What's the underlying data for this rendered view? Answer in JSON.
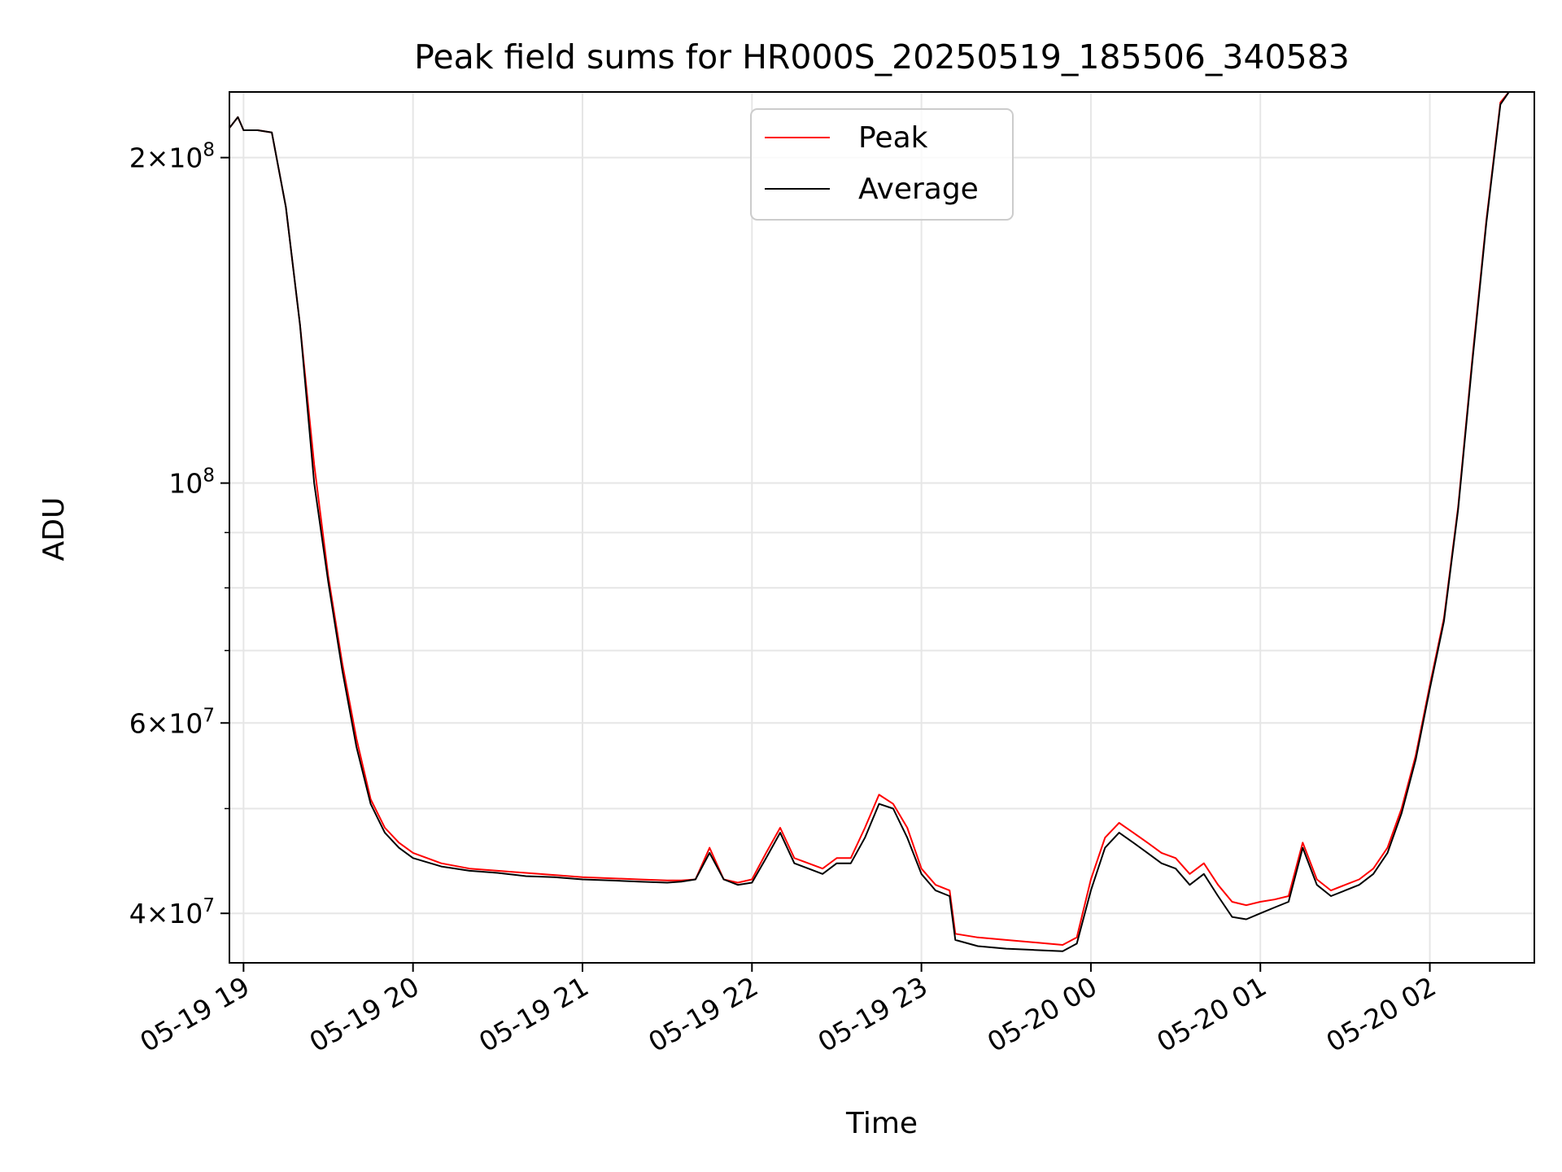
{
  "chart_data": {
    "type": "line",
    "title": "Peak field sums for HR000S_20250519_185506_340583",
    "xlabel": "Time",
    "ylabel": "ADU",
    "y_scale": "log",
    "ylim": [
      36000000,
      230000000
    ],
    "xlim": [
      "2025-05-19 18:55",
      "2025-05-20 02:37"
    ],
    "grid": true,
    "legend": {
      "placement": "upper center",
      "entries": [
        "Peak",
        "Average"
      ]
    },
    "x_ticks": [
      {
        "value": "2025-05-19 19:00",
        "label": "05-19 19"
      },
      {
        "value": "2025-05-19 20:00",
        "label": "05-19 20"
      },
      {
        "value": "2025-05-19 21:00",
        "label": "05-19 21"
      },
      {
        "value": "2025-05-19 22:00",
        "label": "05-19 22"
      },
      {
        "value": "2025-05-19 23:00",
        "label": "05-19 23"
      },
      {
        "value": "2025-05-20 00:00",
        "label": "05-20 00"
      },
      {
        "value": "2025-05-20 01:00",
        "label": "05-20 01"
      },
      {
        "value": "2025-05-20 02:00",
        "label": "05-20 02"
      }
    ],
    "y_ticks": [
      {
        "value": 40000000,
        "base": "4",
        "exp": "7"
      },
      {
        "value": 60000000,
        "base": "6",
        "exp": "7"
      },
      {
        "value": 100000000,
        "base": "",
        "exp": "8"
      },
      {
        "value": 200000000,
        "base": "2",
        "exp": "8"
      }
    ],
    "y_minor_ticks": [
      50000000,
      70000000,
      80000000,
      90000000
    ],
    "series": [
      {
        "name": "Peak",
        "color": "#ff0000",
        "x": [
          "2025-05-19 18:55",
          "2025-05-19 18:58",
          "2025-05-19 19:00",
          "2025-05-19 19:05",
          "2025-05-19 19:10",
          "2025-05-19 19:15",
          "2025-05-19 19:20",
          "2025-05-19 19:25",
          "2025-05-19 19:30",
          "2025-05-19 19:35",
          "2025-05-19 19:40",
          "2025-05-19 19:45",
          "2025-05-19 19:50",
          "2025-05-19 19:55",
          "2025-05-19 20:00",
          "2025-05-19 20:10",
          "2025-05-19 20:20",
          "2025-05-19 20:30",
          "2025-05-19 20:40",
          "2025-05-19 20:50",
          "2025-05-19 21:00",
          "2025-05-19 21:10",
          "2025-05-19 21:20",
          "2025-05-19 21:30",
          "2025-05-19 21:35",
          "2025-05-19 21:40",
          "2025-05-19 21:45",
          "2025-05-19 21:50",
          "2025-05-19 21:55",
          "2025-05-19 22:00",
          "2025-05-19 22:05",
          "2025-05-19 22:10",
          "2025-05-19 22:15",
          "2025-05-19 22:20",
          "2025-05-19 22:25",
          "2025-05-19 22:30",
          "2025-05-19 22:35",
          "2025-05-19 22:40",
          "2025-05-19 22:45",
          "2025-05-19 22:50",
          "2025-05-19 22:55",
          "2025-05-19 23:00",
          "2025-05-19 23:05",
          "2025-05-19 23:10",
          "2025-05-19 23:12",
          "2025-05-19 23:20",
          "2025-05-19 23:30",
          "2025-05-19 23:40",
          "2025-05-19 23:50",
          "2025-05-19 23:55",
          "2025-05-20 00:00",
          "2025-05-20 00:05",
          "2025-05-20 00:10",
          "2025-05-20 00:15",
          "2025-05-20 00:20",
          "2025-05-20 00:25",
          "2025-05-20 00:30",
          "2025-05-20 00:35",
          "2025-05-20 00:40",
          "2025-05-20 00:45",
          "2025-05-20 00:50",
          "2025-05-20 00:55",
          "2025-05-20 01:00",
          "2025-05-20 01:05",
          "2025-05-20 01:10",
          "2025-05-20 01:15",
          "2025-05-20 01:20",
          "2025-05-20 01:25",
          "2025-05-20 01:30",
          "2025-05-20 01:35",
          "2025-05-20 01:40",
          "2025-05-20 01:45",
          "2025-05-20 01:50",
          "2025-05-20 01:55",
          "2025-05-20 02:00",
          "2025-05-20 02:05",
          "2025-05-20 02:10",
          "2025-05-20 02:15",
          "2025-05-20 02:20",
          "2025-05-20 02:25",
          "2025-05-20 02:28"
        ],
        "y": [
          213000000,
          218000000,
          212000000,
          212000000,
          211000000,
          180000000,
          140000000,
          104000000,
          82000000,
          68000000,
          58000000,
          51000000,
          48000000,
          46500000,
          45500000,
          44500000,
          44000000,
          43800000,
          43600000,
          43400000,
          43200000,
          43100000,
          43000000,
          42900000,
          42900000,
          43000000,
          46000000,
          43000000,
          42700000,
          43000000,
          45500000,
          48000000,
          45000000,
          44500000,
          44000000,
          45000000,
          45000000,
          48000000,
          51500000,
          50500000,
          48000000,
          44000000,
          42500000,
          42000000,
          38300000,
          38000000,
          37800000,
          37600000,
          37400000,
          38000000,
          43000000,
          47000000,
          48500000,
          47500000,
          46500000,
          45500000,
          45000000,
          43500000,
          44500000,
          42500000,
          41000000,
          40700000,
          41000000,
          41200000,
          41500000,
          46500000,
          43000000,
          42000000,
          42500000,
          43000000,
          44000000,
          46000000,
          50000000,
          56000000,
          65000000,
          75000000,
          95000000,
          130000000,
          175000000,
          225000000,
          232000000
        ]
      },
      {
        "name": "Average",
        "color": "#000000",
        "x": [
          "2025-05-19 18:55",
          "2025-05-19 18:58",
          "2025-05-19 19:00",
          "2025-05-19 19:05",
          "2025-05-19 19:10",
          "2025-05-19 19:15",
          "2025-05-19 19:20",
          "2025-05-19 19:25",
          "2025-05-19 19:30",
          "2025-05-19 19:35",
          "2025-05-19 19:40",
          "2025-05-19 19:45",
          "2025-05-19 19:50",
          "2025-05-19 19:55",
          "2025-05-19 20:00",
          "2025-05-19 20:10",
          "2025-05-19 20:20",
          "2025-05-19 20:30",
          "2025-05-19 20:40",
          "2025-05-19 20:50",
          "2025-05-19 21:00",
          "2025-05-19 21:10",
          "2025-05-19 21:20",
          "2025-05-19 21:30",
          "2025-05-19 21:35",
          "2025-05-19 21:40",
          "2025-05-19 21:45",
          "2025-05-19 21:50",
          "2025-05-19 21:55",
          "2025-05-19 22:00",
          "2025-05-19 22:05",
          "2025-05-19 22:10",
          "2025-05-19 22:15",
          "2025-05-19 22:20",
          "2025-05-19 22:25",
          "2025-05-19 22:30",
          "2025-05-19 22:35",
          "2025-05-19 22:40",
          "2025-05-19 22:45",
          "2025-05-19 22:50",
          "2025-05-19 22:55",
          "2025-05-19 23:00",
          "2025-05-19 23:05",
          "2025-05-19 23:10",
          "2025-05-19 23:12",
          "2025-05-19 23:20",
          "2025-05-19 23:30",
          "2025-05-19 23:40",
          "2025-05-19 23:50",
          "2025-05-19 23:55",
          "2025-05-20 00:00",
          "2025-05-20 00:05",
          "2025-05-20 00:10",
          "2025-05-20 00:15",
          "2025-05-20 00:20",
          "2025-05-20 00:25",
          "2025-05-20 00:30",
          "2025-05-20 00:35",
          "2025-05-20 00:40",
          "2025-05-20 00:45",
          "2025-05-20 00:50",
          "2025-05-20 00:55",
          "2025-05-20 01:00",
          "2025-05-20 01:05",
          "2025-05-20 01:10",
          "2025-05-20 01:15",
          "2025-05-20 01:20",
          "2025-05-20 01:25",
          "2025-05-20 01:30",
          "2025-05-20 01:35",
          "2025-05-20 01:40",
          "2025-05-20 01:45",
          "2025-05-20 01:50",
          "2025-05-20 01:55",
          "2025-05-20 02:00",
          "2025-05-20 02:05",
          "2025-05-20 02:10",
          "2025-05-20 02:15",
          "2025-05-20 02:20",
          "2025-05-20 02:25",
          "2025-05-20 02:28"
        ],
        "y": [
          213000000,
          218000000,
          212000000,
          212000000,
          211000000,
          180000000,
          140000000,
          100000000,
          81000000,
          67000000,
          57000000,
          50500000,
          47500000,
          46000000,
          45000000,
          44200000,
          43800000,
          43600000,
          43300000,
          43200000,
          43000000,
          42900000,
          42800000,
          42700000,
          42800000,
          43000000,
          45500000,
          43000000,
          42500000,
          42700000,
          45000000,
          47500000,
          44500000,
          44000000,
          43500000,
          44500000,
          44500000,
          47000000,
          50500000,
          50000000,
          47000000,
          43500000,
          42000000,
          41500000,
          37800000,
          37300000,
          37100000,
          37000000,
          36900000,
          37500000,
          42000000,
          46000000,
          47500000,
          46500000,
          45500000,
          44500000,
          44000000,
          42500000,
          43500000,
          41500000,
          39700000,
          39500000,
          40000000,
          40500000,
          41000000,
          46000000,
          42500000,
          41500000,
          42000000,
          42500000,
          43500000,
          45500000,
          49500000,
          55500000,
          64500000,
          74500000,
          94500000,
          129000000,
          174000000,
          224000000,
          232000000
        ]
      }
    ]
  }
}
